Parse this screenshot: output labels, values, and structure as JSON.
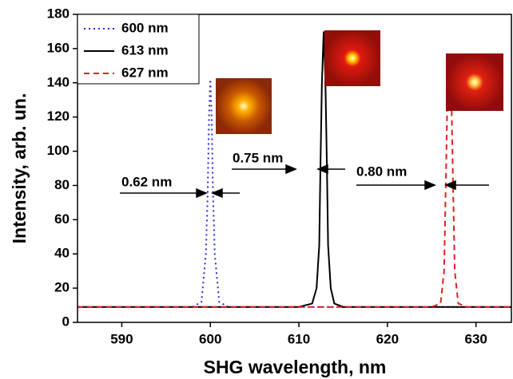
{
  "chart_data": {
    "type": "line",
    "xlabel": "SHG wavelength, nm",
    "ylabel": "Intensity, arb. un.",
    "xlim": [
      585,
      634
    ],
    "xticks": [
      590,
      600,
      610,
      620,
      630
    ],
    "ylim": [
      0,
      180
    ],
    "yticks": [
      0,
      20,
      40,
      60,
      80,
      100,
      120,
      140,
      160,
      180
    ],
    "legend": "upper left",
    "series": [
      {
        "name": "600 nm",
        "color": "#2a2ad8",
        "style": "dotted",
        "x": [
          585,
          598,
          599,
          599.5,
          599.7,
          599.85,
          600,
          600.15,
          600.3,
          600.5,
          601,
          602,
          634
        ],
        "values": [
          9,
          9,
          12,
          40,
          75,
          120,
          142,
          120,
          75,
          40,
          12,
          9,
          9
        ]
      },
      {
        "name": "613 nm",
        "color": "#000000",
        "style": "solid",
        "x": [
          585,
          610,
          611.5,
          612,
          612.3,
          612.425,
          612.6,
          612.8,
          613.0,
          613.175,
          613.3,
          613.6,
          614,
          615,
          634
        ],
        "values": [
          9,
          9,
          11,
          20,
          45,
          88,
          140,
          170,
          140,
          88,
          45,
          20,
          11,
          9,
          9
        ]
      },
      {
        "name": "627 nm",
        "color": "#e02020",
        "style": "dashed",
        "x": [
          585,
          625,
          626,
          626.4,
          626.6,
          626.8,
          627,
          627.2,
          627.4,
          627.6,
          628,
          629,
          634
        ],
        "values": [
          9,
          9,
          11,
          30,
          83,
          140,
          157,
          140,
          83,
          30,
          11,
          9,
          9
        ]
      }
    ],
    "annotations": [
      "0.62 nm",
      "0.75 nm",
      "0.80 nm"
    ]
  }
}
